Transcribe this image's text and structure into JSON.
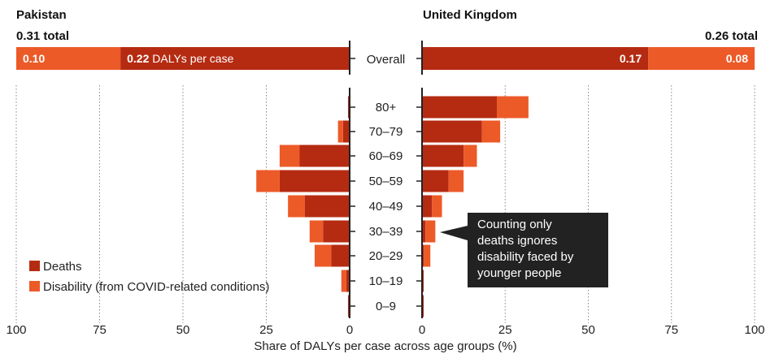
{
  "colors": {
    "deaths": "#b52b12",
    "disability": "#ec5a28",
    "axis": "#222222",
    "grid": "#888888",
    "annotation_bg": "#222222"
  },
  "chart_data": {
    "type": "bar",
    "xlabel": "Share of DALYs per case across age groups (%)",
    "xlim": [
      0,
      100
    ],
    "ticks": [
      "100",
      "75",
      "50",
      "25",
      "0",
      "0",
      "25",
      "50",
      "75",
      "100"
    ],
    "categories": [
      "80+",
      "70–79",
      "60–69",
      "50–59",
      "40–49",
      "30–39",
      "20–29",
      "10–19",
      "0–9"
    ],
    "overall_label": "Overall",
    "legend": [
      {
        "key": "deaths",
        "label": "Deaths"
      },
      {
        "key": "disability",
        "label": "Disability (from COVID-related conditions)"
      }
    ],
    "annotation": [
      "Counting only",
      "deaths ignores",
      "disability faced by",
      "younger people"
    ],
    "panels": [
      {
        "country": "Pakistan",
        "side": "left",
        "total_label": "0.31 total",
        "overall": {
          "disability": 0.1,
          "deaths": 0.22,
          "disability_label": "0.10",
          "deaths_label": "0.22",
          "deaths_suffix": " DALYs per case"
        },
        "series": [
          {
            "name": "Deaths",
            "key": "deaths",
            "values": [
              0.5,
              2,
              15,
              21,
              13.5,
              8,
              5.5,
              1,
              0.5
            ]
          },
          {
            "name": "Disability (from COVID-related conditions)",
            "key": "disability",
            "values": [
              0,
              1.5,
              6,
              7,
              5,
              4,
              5,
              1.5,
              0
            ]
          }
        ]
      },
      {
        "country": "United Kingdom",
        "side": "right",
        "total_label": "0.26 total",
        "overall": {
          "deaths": 0.17,
          "disability": 0.08,
          "deaths_label": "0.17",
          "disability_label": "0.08"
        },
        "series": [
          {
            "name": "Deaths",
            "key": "deaths",
            "values": [
              22.5,
              18,
              12.5,
              8,
              3,
              1,
              0.5,
              0.5,
              0.5
            ]
          },
          {
            "name": "Disability (from COVID-related conditions)",
            "key": "disability",
            "values": [
              9.5,
              5.5,
              4,
              4.5,
              3,
              3,
              2,
              0,
              0
            ]
          }
        ]
      }
    ]
  }
}
